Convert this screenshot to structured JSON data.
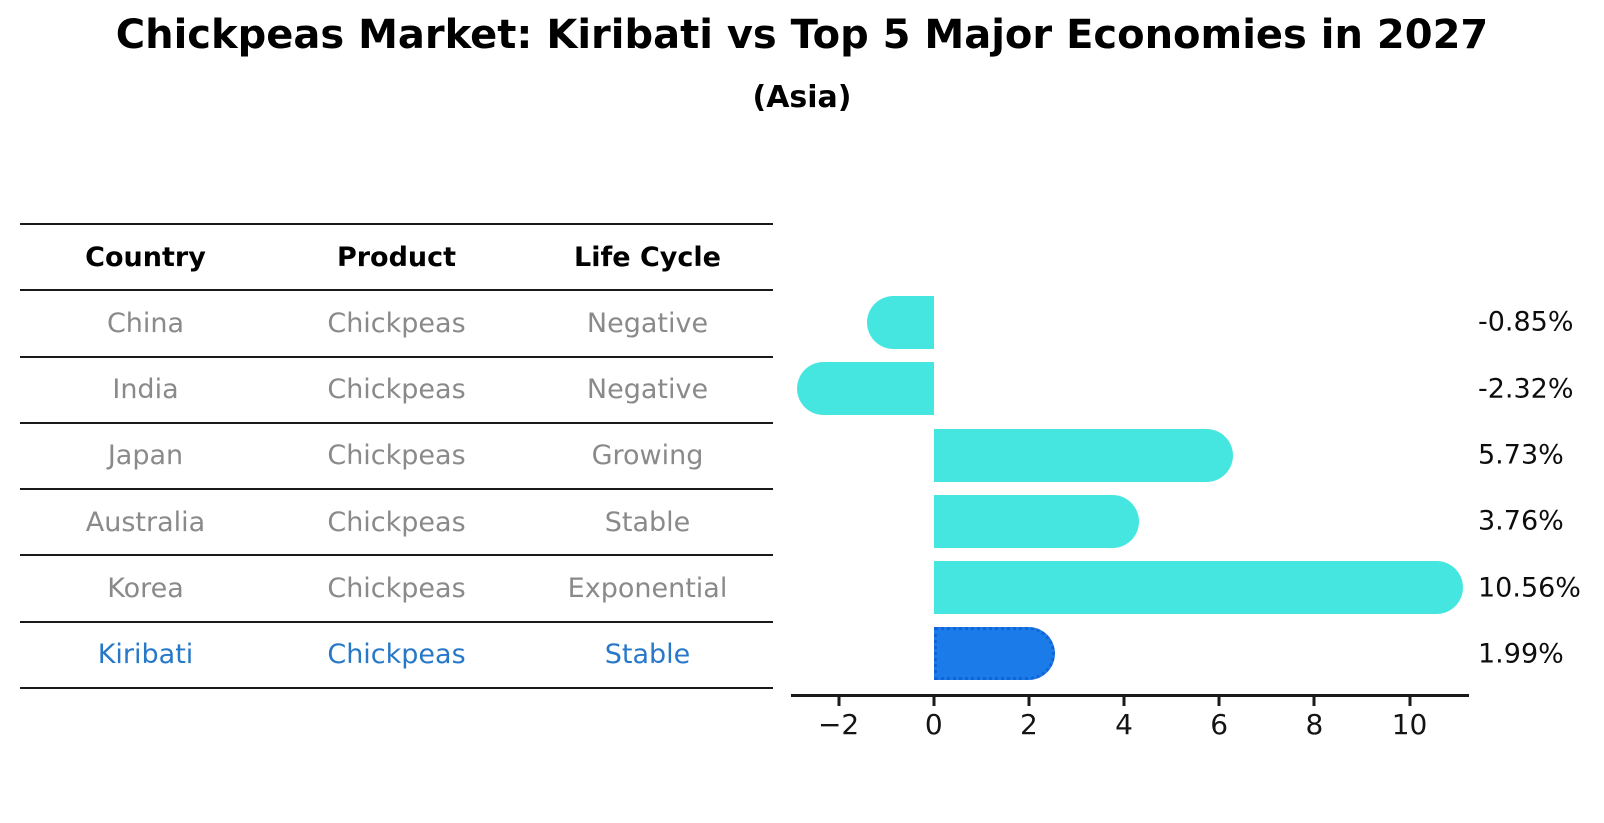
{
  "title": "Chickpeas Market: Kiribati vs Top 5 Major Economies in 2027",
  "subtitle": "(Asia)",
  "table": {
    "headers": [
      "Country",
      "Product",
      "Life Cycle"
    ],
    "rows": [
      {
        "country": "China",
        "product": "Chickpeas",
        "life_cycle": "Negative",
        "highlight": false
      },
      {
        "country": "India",
        "product": "Chickpeas",
        "life_cycle": "Negative",
        "highlight": false
      },
      {
        "country": "Japan",
        "product": "Chickpeas",
        "life_cycle": "Growing",
        "highlight": false
      },
      {
        "country": "Australia",
        "product": "Chickpeas",
        "life_cycle": "Stable",
        "highlight": false
      },
      {
        "country": "Korea",
        "product": "Chickpeas",
        "life_cycle": "Exponential",
        "highlight": false
      },
      {
        "country": "Kiribati",
        "product": "Chickpeas",
        "life_cycle": "Stable",
        "highlight": true
      }
    ]
  },
  "chart_data": {
    "type": "bar",
    "orientation": "horizontal",
    "title": "Chickpeas Market: Kiribati vs Top 5 Major Economies in 2027",
    "subtitle": "(Asia)",
    "categories": [
      "China",
      "India",
      "Japan",
      "Australia",
      "Korea",
      "Kiribati"
    ],
    "values": [
      -0.85,
      -2.32,
      5.73,
      3.76,
      10.56,
      1.99
    ],
    "value_labels": [
      "-0.85%",
      "-2.32%",
      "5.73%",
      "3.76%",
      "10.56%",
      "1.99%"
    ],
    "x_ticks": [
      -2,
      0,
      2,
      4,
      6,
      8,
      10
    ],
    "x_tick_labels": [
      "−2",
      "0",
      "2",
      "4",
      "6",
      "8",
      "10"
    ],
    "xlim": [
      -3.0,
      11.25
    ],
    "highlight_index": 5,
    "grid": false,
    "legend": false,
    "bar_style": "rounded-cap"
  },
  "colors": {
    "bar": "#45E6E0",
    "highlight_bar": "#1B7BE8",
    "highlight_bar_border": "#1263D6",
    "highlight_text": "#2878C8",
    "muted_text": "#8A8A8A",
    "text": "#000000",
    "line": "#1A1A1A"
  }
}
